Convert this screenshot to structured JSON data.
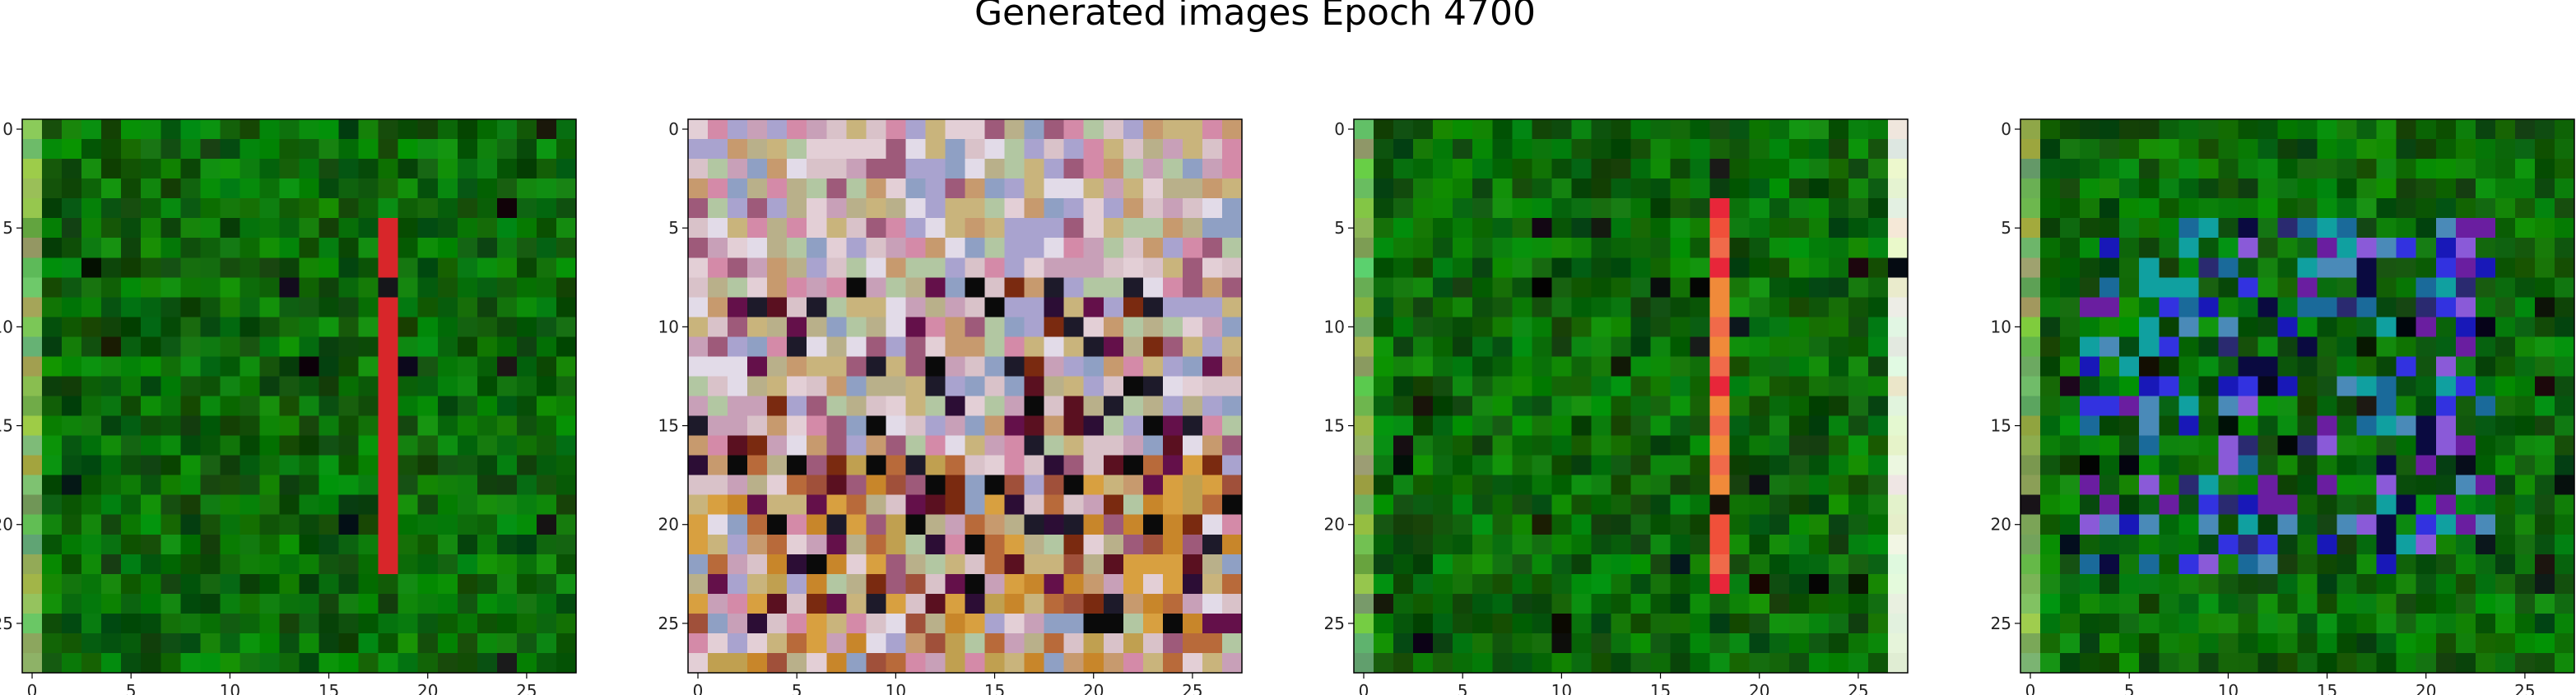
{
  "figure": {
    "title": "Generated images Epoch 4700"
  },
  "chart_data": {
    "type": "heatmap",
    "grid_size": 28,
    "xlim": [
      -0.5,
      27.5
    ],
    "ylim": [
      27.5,
      -0.5
    ],
    "x_ticks": [
      0,
      5,
      10,
      15,
      20,
      25
    ],
    "y_ticks": [
      0,
      5,
      10,
      15,
      20,
      25
    ],
    "images": [
      {
        "name": "image-1",
        "style": "green",
        "stripe_col": 18,
        "stripe_rows": [
          5,
          22
        ],
        "stripe_color": "#d8262a"
      },
      {
        "name": "image-2",
        "style": "pastel"
      },
      {
        "name": "image-3",
        "style": "green",
        "stripe_col": 18,
        "stripe_rows": [
          4,
          23
        ],
        "stripe_color": "#f0503a",
        "light_col": 27
      },
      {
        "name": "image-4",
        "style": "green-blue",
        "blob_rows": [
          5,
          22
        ],
        "blob_cols": [
          3,
          23
        ]
      }
    ]
  }
}
